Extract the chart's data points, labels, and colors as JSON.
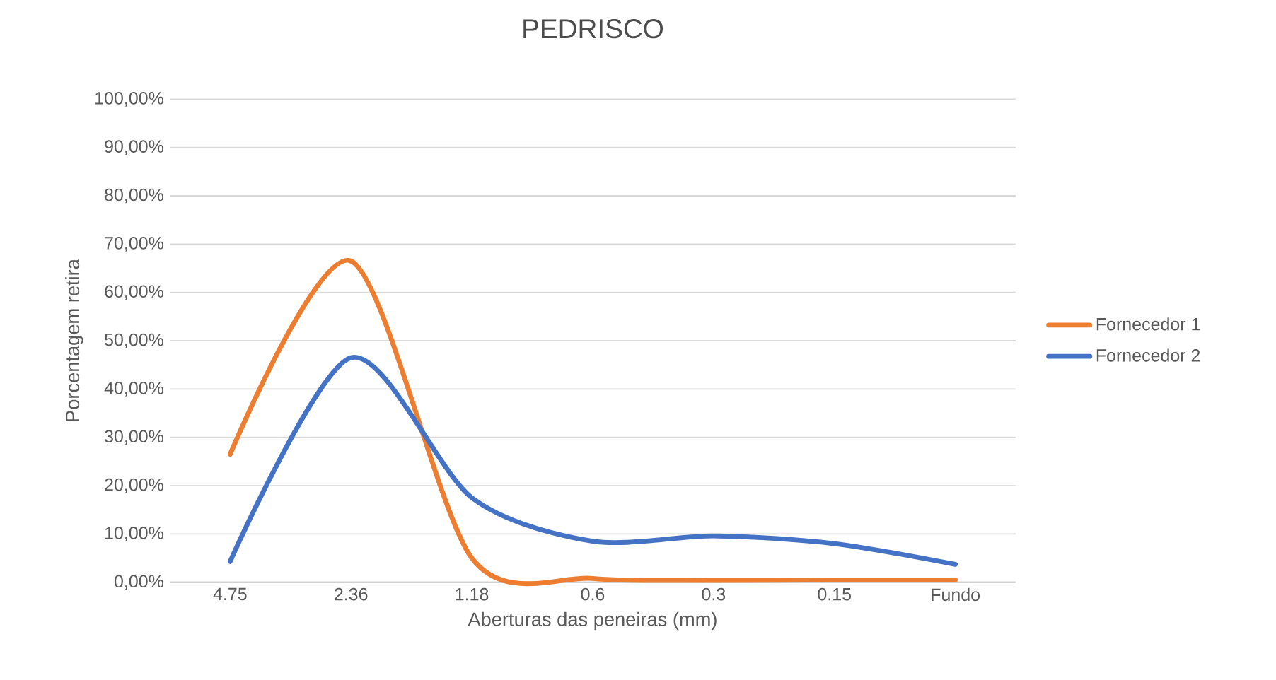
{
  "chart_data": {
    "type": "line",
    "title": "PEDRISCO",
    "xlabel": "Aberturas das peneiras (mm)",
    "ylabel": "Porcentagem retira",
    "categories": [
      "4.75",
      "2.36",
      "1.18",
      "0.6",
      "0.3",
      "0.15",
      "Fundo"
    ],
    "series": [
      {
        "name": "Fornecedor 1",
        "color": "#ed7d31",
        "values": [
          26.5,
          66.5,
          5,
          0.8,
          0.4,
          0.5,
          0.5
        ]
      },
      {
        "name": "Fornecedor 2",
        "color": "#4472c4",
        "values": [
          4.3,
          46.5,
          17.5,
          8.5,
          9.6,
          8,
          3.7
        ]
      }
    ],
    "ylim": [
      0,
      100
    ],
    "yticks": [
      {
        "value": 0,
        "label": "0,00%"
      },
      {
        "value": 10,
        "label": "10,00%"
      },
      {
        "value": 20,
        "label": "20,00%"
      },
      {
        "value": 30,
        "label": "30,00%"
      },
      {
        "value": 40,
        "label": "40,00%"
      },
      {
        "value": 50,
        "label": "50,00%"
      },
      {
        "value": 60,
        "label": "60,00%"
      },
      {
        "value": 70,
        "label": "70,00%"
      },
      {
        "value": 80,
        "label": "80,00%"
      },
      {
        "value": 90,
        "label": "90,00%"
      },
      {
        "value": 100,
        "label": "100,00%"
      }
    ],
    "grid": "y",
    "legend": "right",
    "marker": "none",
    "line_style": "solid"
  }
}
